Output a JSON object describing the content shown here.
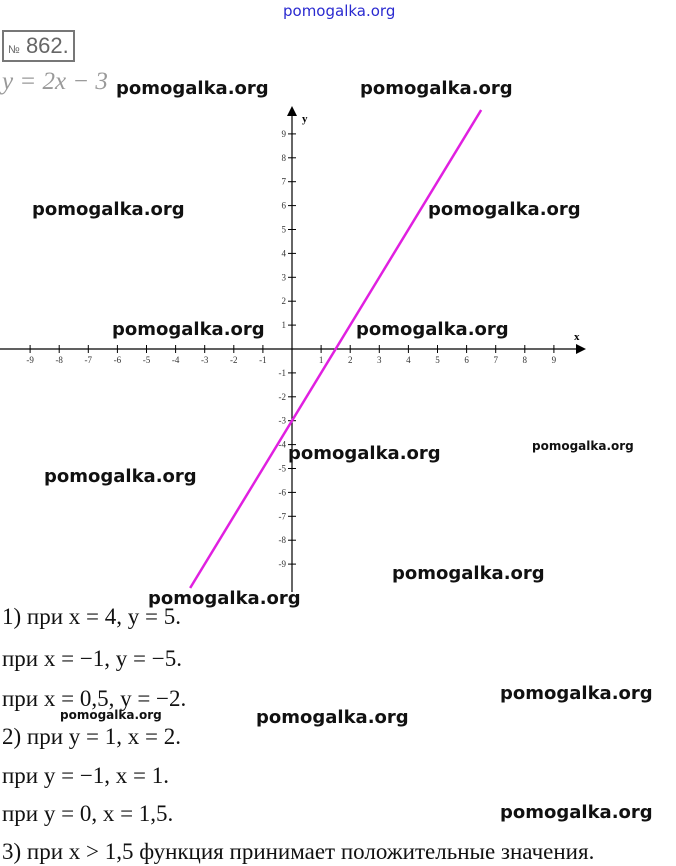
{
  "header": {
    "number_prefix": "№",
    "number": "862.",
    "equation": "y = 2x − 3"
  },
  "watermarks": [
    "pomogalka.org",
    "pomogalka.org",
    "pomogalka.org",
    "pomogalka.org",
    "pomogalka.org",
    "pomogalka.org",
    "pomogalka.org",
    "pomogalka.org",
    "pomogalka.org",
    "pomogalka.org",
    "pomogalka.org",
    "pomogalka.org",
    "pomogalka.org",
    "pomogalka.org",
    "pomogalka.org",
    "pomogalka.org"
  ],
  "chart_data": {
    "type": "line",
    "xlabel": "x",
    "ylabel": "y",
    "xlim": [
      -10,
      10
    ],
    "ylim": [
      -10,
      10
    ],
    "x_ticks": [
      -9,
      -8,
      -7,
      -6,
      -5,
      -4,
      -3,
      -2,
      -1,
      1,
      2,
      3,
      4,
      5,
      6,
      7,
      8,
      9
    ],
    "y_ticks": [
      9,
      8,
      7,
      6,
      5,
      4,
      3,
      2,
      1,
      -1,
      -2,
      -3,
      -4,
      -5,
      -6,
      -7,
      -8,
      -9
    ],
    "series": [
      {
        "x": [
          -3.5,
          6.5
        ],
        "y": [
          -10,
          10
        ],
        "color": "#e020e0"
      }
    ],
    "grid": false
  },
  "solution": [
    "1) при x = 4,        y = 5.",
    "при x = −1,        y = −5.",
    "при x = 0,5,        y = −2.",
    "2) при y = 1,        x = 2.",
    "при y = −1,        x = 1.",
    "при y = 0,        x = 1,5.",
    "3) при x > 1,5 функция принимает положительные значения."
  ]
}
